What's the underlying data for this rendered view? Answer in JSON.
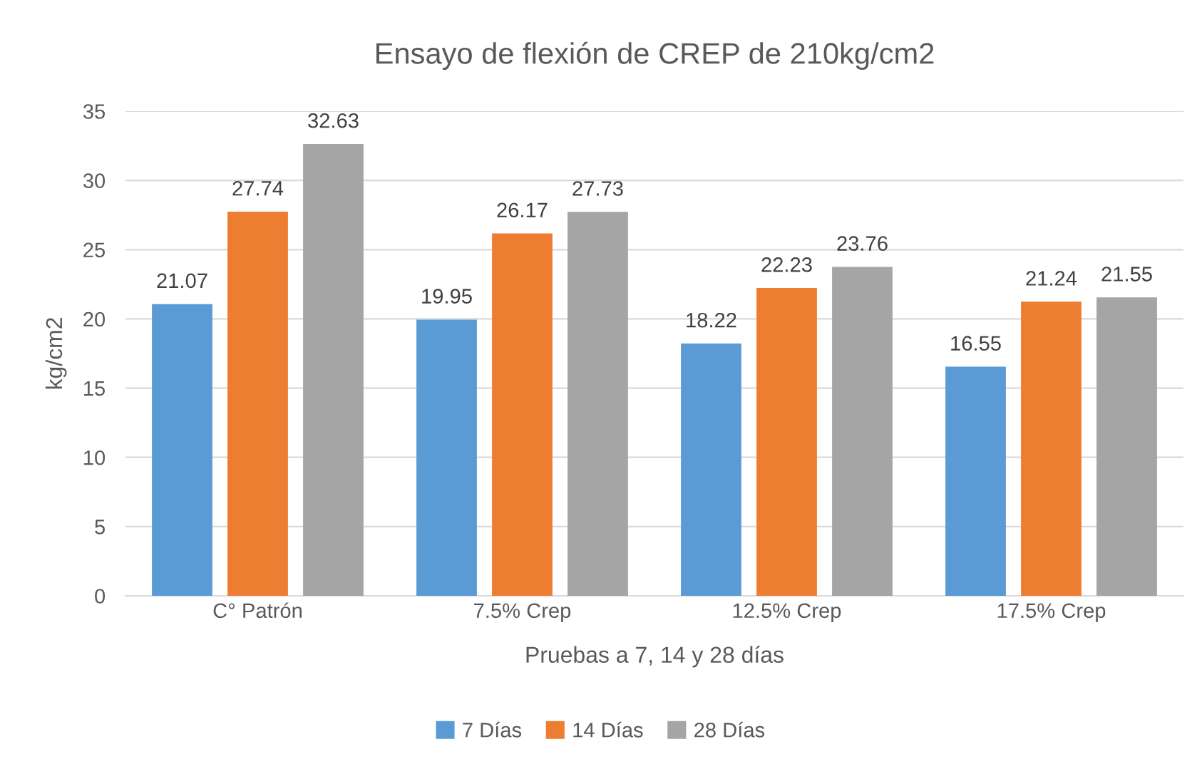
{
  "chart_data": {
    "type": "bar",
    "title": "Ensayo de flexión de CREP de 210kg/cm2",
    "xlabel": "Pruebas a 7, 14 y 28 días",
    "ylabel": "kg/cm2",
    "categories": [
      "C° Patrón",
      "7.5% Crep",
      "12.5% Crep",
      "17.5% Crep"
    ],
    "series": [
      {
        "name": "7 Días",
        "color": "#5b9bd5",
        "values": [
          21.07,
          19.95,
          18.22,
          16.55
        ]
      },
      {
        "name": "14 Días",
        "color": "#ed7d31",
        "values": [
          27.74,
          26.17,
          22.23,
          21.24
        ]
      },
      {
        "name": "28 Días",
        "color": "#a5a5a5",
        "values": [
          32.63,
          27.73,
          23.76,
          21.55
        ]
      }
    ],
    "ylim": [
      0,
      35
    ],
    "yticks": [
      0,
      5,
      10,
      15,
      20,
      25,
      30,
      35
    ],
    "grid": "y",
    "legend": "bottom",
    "data_labels": true
  }
}
